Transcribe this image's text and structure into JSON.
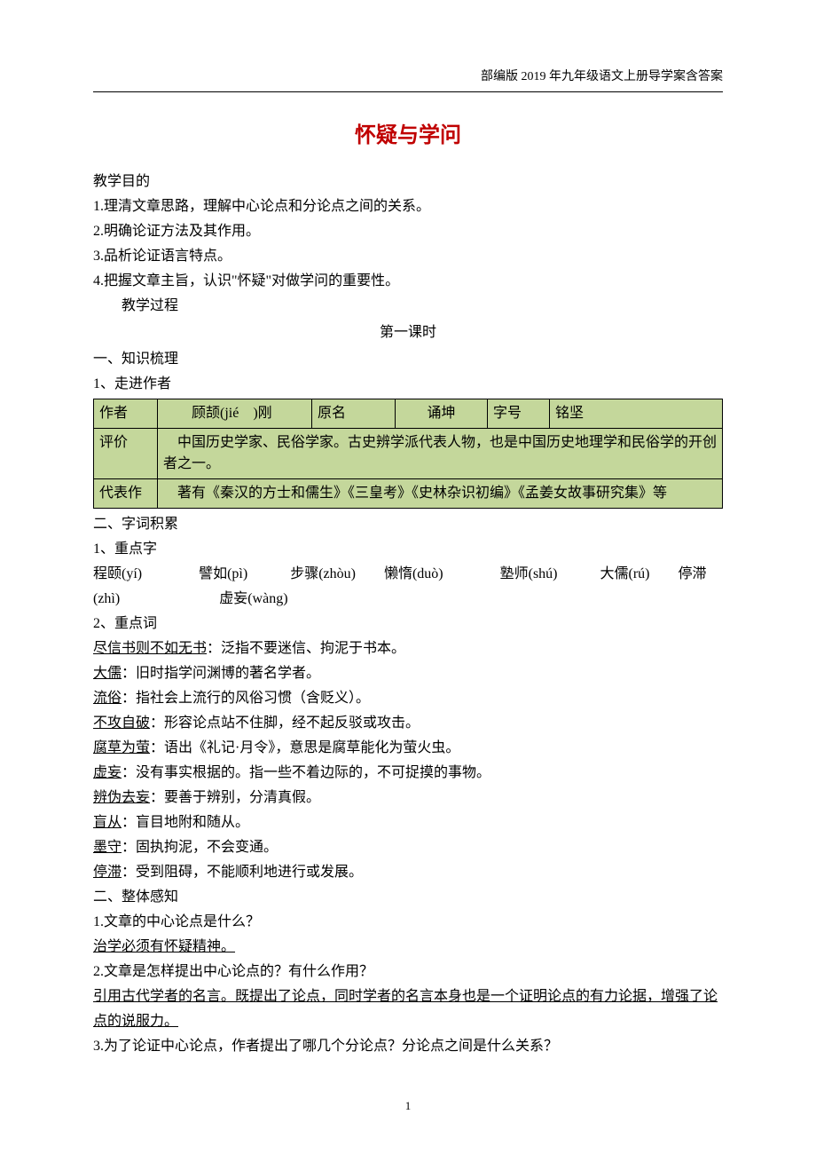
{
  "header": "部编版 2019 年九年级语文上册导学案含答案",
  "title": "怀疑与学问",
  "objectives_label": "教学目的",
  "objectives": [
    "1.理清文章思路，理解中心论点和分论点之间的关系。",
    "2.明确论证方法及其作用。",
    "3.品析论证语言特点。",
    "4.把握文章主旨，认识\"怀疑\"对做学问的重要性。"
  ],
  "process_label": "教学过程",
  "lesson_label": "第一课时",
  "section1": "一、知识梳理",
  "section1_1": "1、走进作者",
  "author_table": {
    "columns_row1": [
      "作者",
      "顾颉(jié　)刚",
      "原名",
      "诵坤",
      "字号",
      "铭坚"
    ],
    "row2_label": "评价",
    "row2_text": "中国历史学家、民俗学家。古史辨学派代表人物，也是中国历史地理学和民俗学的开创者之一。",
    "row3_label": "代表作",
    "row3_text": "　著有《秦汉的方士和儒生》《三皇考》《史林杂识初编》《孟姜女故事研究集》等",
    "col_widths": [
      "72px",
      "174px",
      "94px",
      "104px",
      "70px",
      "auto"
    ],
    "bg_color": "#c4d79b"
  },
  "section2": "二、字词积累",
  "section2_1": "1、重点字",
  "vocab_chars": "程颐(yí)　　　　譬如(pì)　　　步骤(zhòu)　　懒惰(duò)　　　　塾师(shú)　　　大儒(rú)　　停滞(zhì)　　　　　　　虚妄(wàng)",
  "section2_2": "2、重点词",
  "vocab_words": [
    {
      "term": "尽信书则不如无书",
      "def": "：泛指不要迷信、拘泥于书本。"
    },
    {
      "term": "大儒",
      "def": "：旧时指学问渊博的著名学者。"
    },
    {
      "term": "流俗",
      "def": "：指社会上流行的风俗习惯（含贬义）。"
    },
    {
      "term": "不攻自破",
      "def": "：形容论点站不住脚，经不起反驳或攻击。"
    },
    {
      "term": "腐草为萤",
      "def": "：语出《礼记·月令》，意思是腐草能化为萤火虫。"
    },
    {
      "term": "虚妄",
      "def": "：没有事实根据的。指一些不着边际的，不可捉摸的事物。"
    },
    {
      "term": "辨伪去妄",
      "def": "：要善于辨别，分清真假。"
    },
    {
      "term": "盲从",
      "def": "：盲目地附和随从。"
    },
    {
      "term": "墨守",
      "def": "：固执拘泥，不会变通。"
    },
    {
      "term": "停滞",
      "def": "：受到阻碍，不能顺利地进行或发展。"
    }
  ],
  "section3": "二、整体感知",
  "qa": [
    {
      "q": "1.文章的中心论点是什么？",
      "a": "治学必须有怀疑精神。"
    },
    {
      "q": "2.文章是怎样提出中心论点的？有什么作用？",
      "a": "引用古代学者的名言。既提出了论点，同时学者的名言本身也是一个证明论点的有力论据，增强了论点的说服力。"
    },
    {
      "q": "3.为了论证中心论点，作者提出了哪几个分论点？分论点之间是什么关系？",
      "a": ""
    }
  ],
  "page_number": "1",
  "colors": {
    "title": "#c00000",
    "table_bg": "#c4d79b",
    "text": "#000000",
    "background": "#ffffff"
  }
}
